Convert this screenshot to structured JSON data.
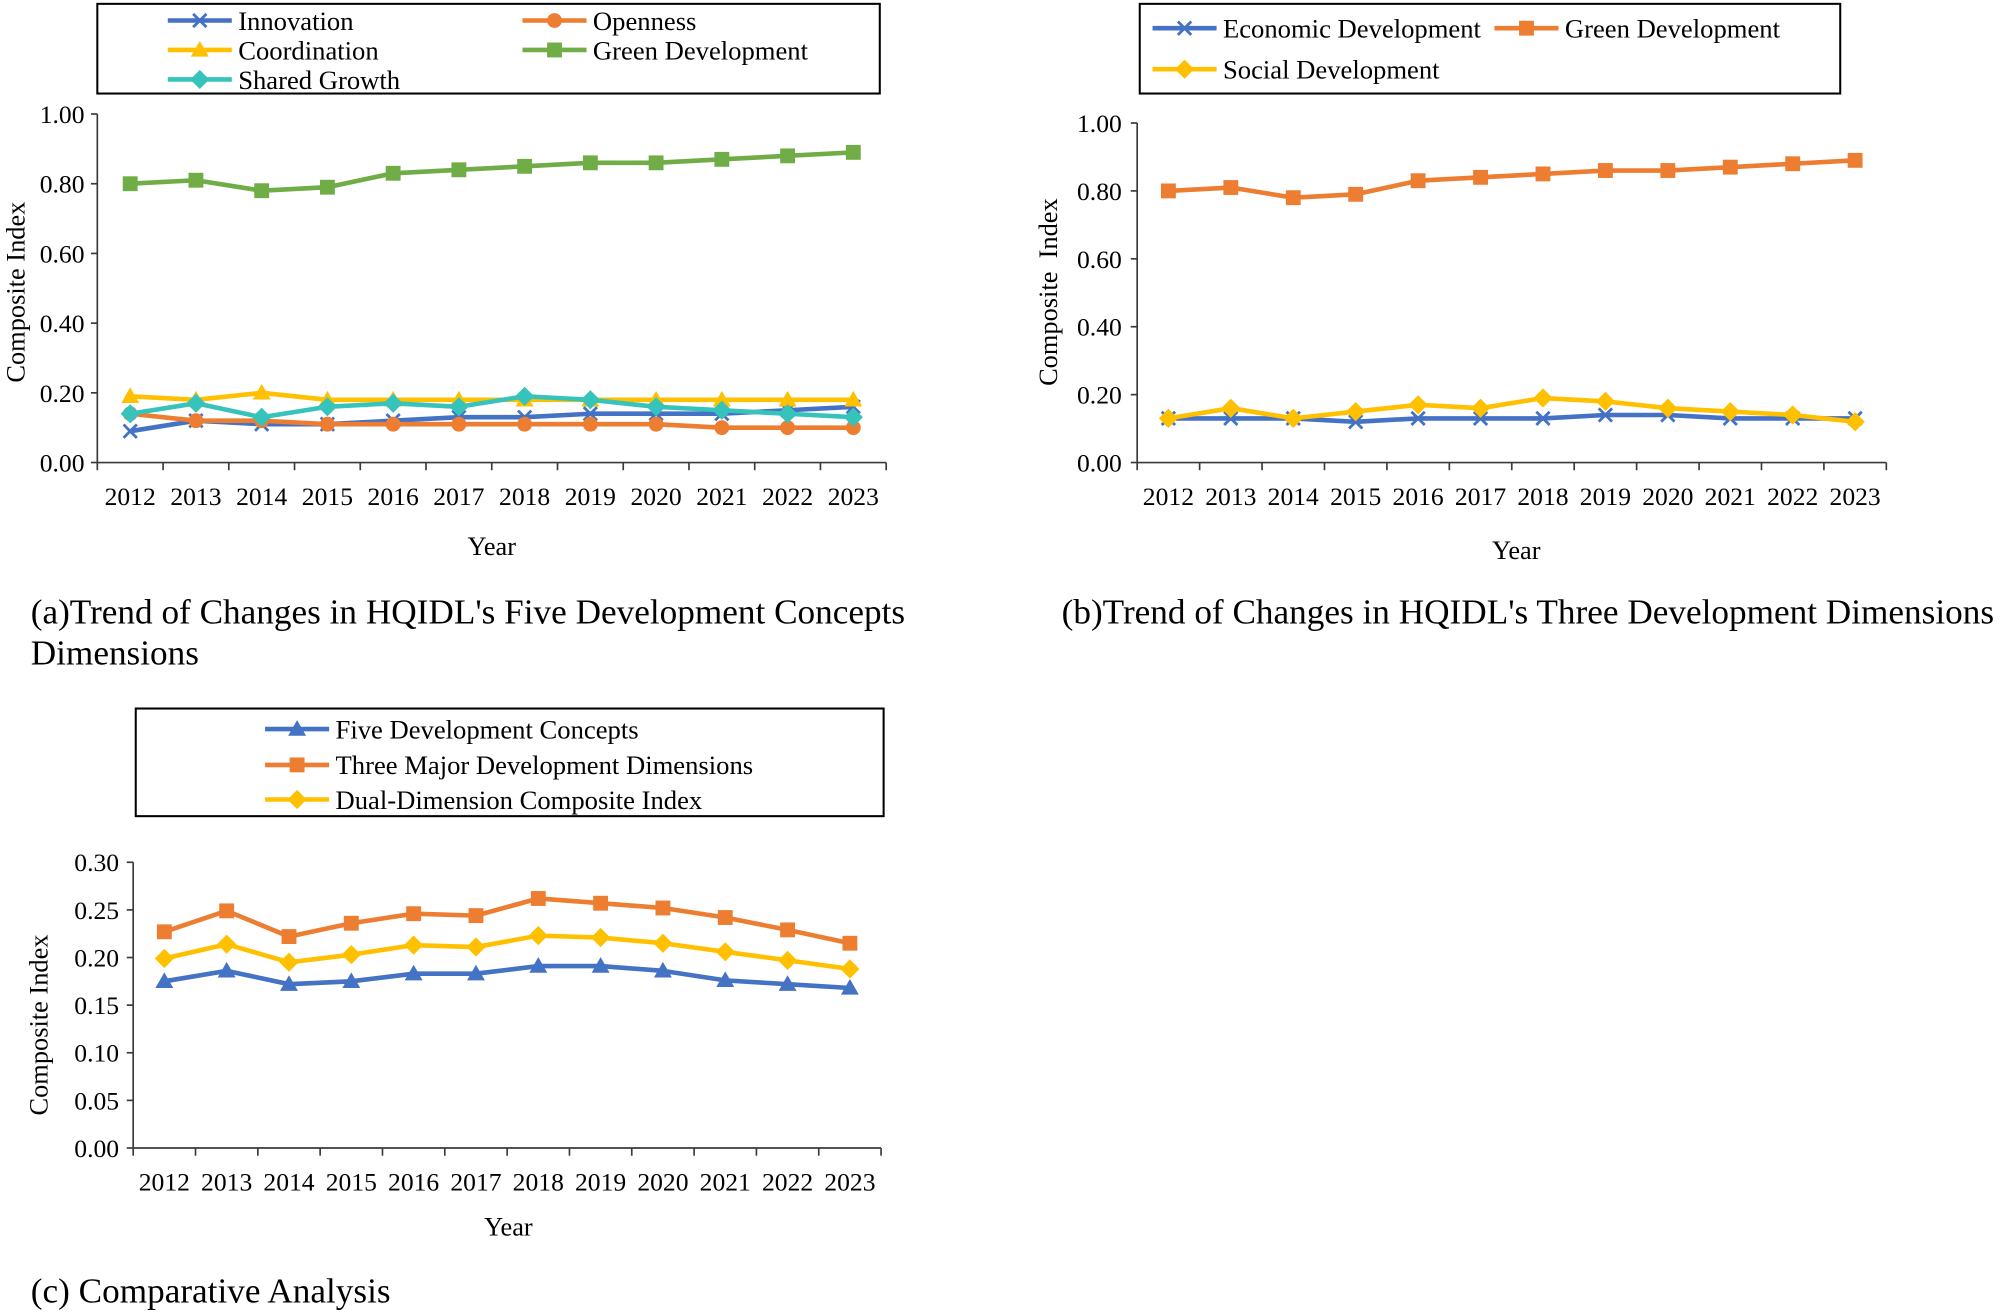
{
  "chart_data": [
    {
      "type": "line",
      "caption": [
        "(a)Trend of Changes in HQIDL's Five Development Concepts",
        "Dimensions"
      ],
      "xlabel": "Year",
      "ylabel": "Composite Index",
      "categories": [
        "2012",
        "2013",
        "2014",
        "2015",
        "2016",
        "2017",
        "2018",
        "2019",
        "2020",
        "2021",
        "2022",
        "2023"
      ],
      "ylim": [
        0,
        1
      ],
      "ytick_labels": [
        "0.00",
        "0.20",
        "0.40",
        "0.60",
        "0.80",
        "1.00"
      ],
      "grid": false,
      "series": [
        {
          "name": "Innovation",
          "color": "#4472C4",
          "marker": "x",
          "values": [
            0.09,
            0.12,
            0.11,
            0.11,
            0.12,
            0.13,
            0.13,
            0.14,
            0.14,
            0.14,
            0.15,
            0.16
          ]
        },
        {
          "name": "Openness",
          "color": "#ED7D31",
          "marker": "circle",
          "values": [
            0.14,
            0.12,
            0.12,
            0.11,
            0.11,
            0.11,
            0.11,
            0.11,
            0.11,
            0.1,
            0.1,
            0.1
          ]
        },
        {
          "name": "Coordination",
          "color": "#FFC000",
          "marker": "triangle",
          "values": [
            0.19,
            0.18,
            0.2,
            0.18,
            0.18,
            0.18,
            0.18,
            0.18,
            0.18,
            0.18,
            0.18,
            0.18
          ]
        },
        {
          "name": "Green Development",
          "color": "#70AD47",
          "marker": "square",
          "values": [
            0.8,
            0.81,
            0.78,
            0.79,
            0.83,
            0.84,
            0.85,
            0.86,
            0.86,
            0.87,
            0.88,
            0.89
          ]
        },
        {
          "name": "Shared Growth",
          "color": "#36C3BC",
          "marker": "diamond",
          "values": [
            0.14,
            0.17,
            0.13,
            0.16,
            0.17,
            0.16,
            0.19,
            0.18,
            0.16,
            0.15,
            0.14,
            0.13
          ]
        }
      ]
    },
    {
      "type": "line",
      "caption": [
        "(b)Trend of Changes in HQIDL's Three Development Dimensions"
      ],
      "xlabel": "Year",
      "ylabel": "Composite  Index",
      "categories": [
        "2012",
        "2013",
        "2014",
        "2015",
        "2016",
        "2017",
        "2018",
        "2019",
        "2020",
        "2021",
        "2022",
        "2023"
      ],
      "ylim": [
        0,
        1
      ],
      "ytick_labels": [
        "0.00",
        "0.20",
        "0.40",
        "0.60",
        "0.80",
        "1.00"
      ],
      "grid": false,
      "series": [
        {
          "name": "Economic Development",
          "color": "#4472C4",
          "marker": "x",
          "values": [
            0.13,
            0.13,
            0.13,
            0.12,
            0.13,
            0.13,
            0.13,
            0.14,
            0.14,
            0.13,
            0.13,
            0.13
          ]
        },
        {
          "name": "Green Development",
          "color": "#ED7D31",
          "marker": "square",
          "values": [
            0.8,
            0.81,
            0.78,
            0.79,
            0.83,
            0.84,
            0.85,
            0.86,
            0.86,
            0.87,
            0.88,
            0.89
          ]
        },
        {
          "name": "Social Development",
          "color": "#FFC000",
          "marker": "diamond",
          "values": [
            0.13,
            0.16,
            0.13,
            0.15,
            0.17,
            0.16,
            0.19,
            0.18,
            0.16,
            0.15,
            0.14,
            0.12
          ]
        }
      ]
    },
    {
      "type": "line",
      "caption": [
        "(c) Comparative Analysis"
      ],
      "xlabel": "Year",
      "ylabel": "Composite Index",
      "categories": [
        "2012",
        "2013",
        "2014",
        "2015",
        "2016",
        "2017",
        "2018",
        "2019",
        "2020",
        "2021",
        "2022",
        "2023"
      ],
      "ylim": [
        0,
        0.3
      ],
      "ytick_labels": [
        "0.00",
        "0.05",
        "0.10",
        "0.15",
        "0.20",
        "0.25",
        "0.30"
      ],
      "grid": false,
      "series": [
        {
          "name": "Five Development Concepts",
          "color": "#4472C4",
          "marker": "triangle",
          "values": [
            0.175,
            0.186,
            0.172,
            0.175,
            0.183,
            0.183,
            0.191,
            0.191,
            0.186,
            0.176,
            0.172,
            0.168
          ]
        },
        {
          "name": "Three Major Development Dimensions",
          "color": "#ED7D31",
          "marker": "square",
          "values": [
            0.227,
            0.249,
            0.222,
            0.236,
            0.246,
            0.244,
            0.262,
            0.257,
            0.252,
            0.242,
            0.229,
            0.215
          ]
        },
        {
          "name": "Dual-Dimension Composite Index",
          "color": "#FFC000",
          "marker": "diamond",
          "values": [
            0.199,
            0.214,
            0.195,
            0.203,
            0.213,
            0.211,
            0.223,
            0.221,
            0.215,
            0.206,
            0.197,
            0.188
          ]
        }
      ]
    }
  ]
}
